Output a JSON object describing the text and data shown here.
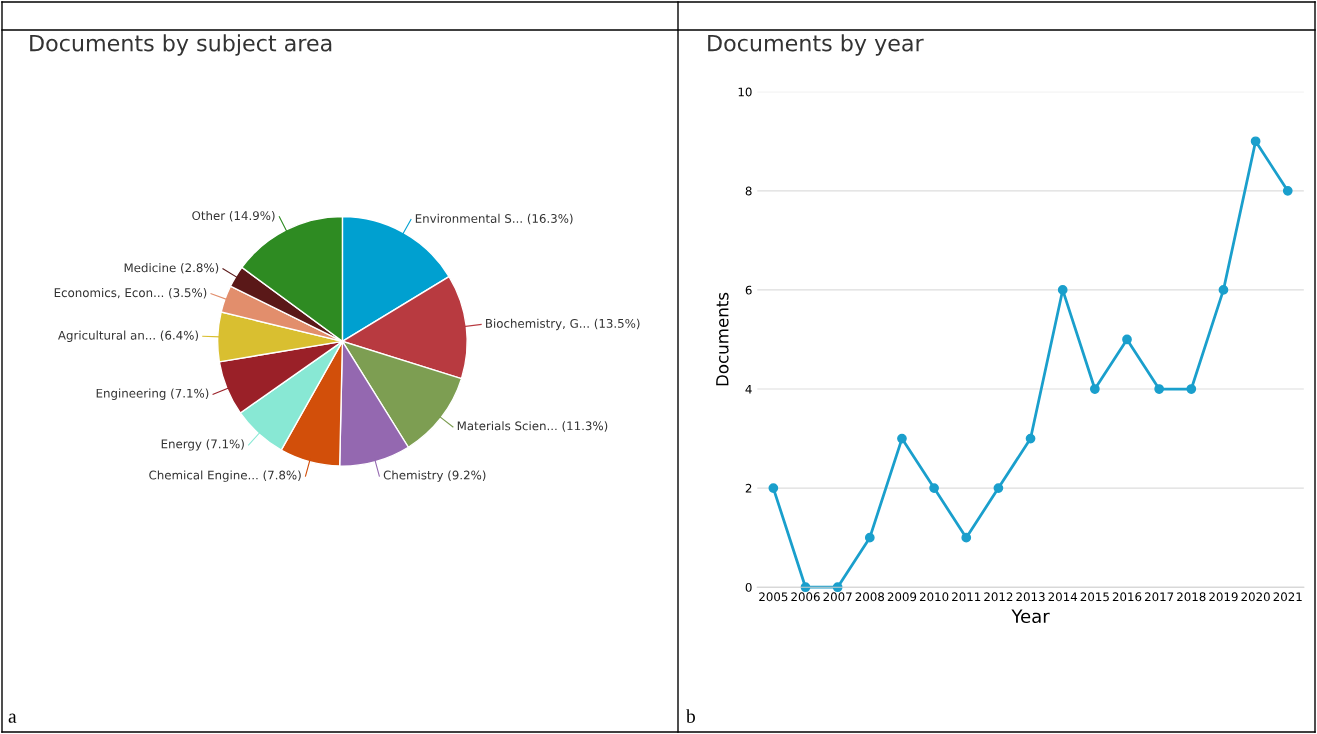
{
  "chart_data": [
    {
      "type": "pie",
      "title": "Documents by subject area",
      "categories": [
        "Environmental S...",
        "Biochemistry, G...",
        "Materials Scien...",
        "Chemistry",
        "Chemical Engine...",
        "Energy",
        "Engineering",
        "Agricultural an...",
        "Economics, Econ...",
        "Medicine",
        "Other"
      ],
      "values": [
        16.3,
        13.5,
        11.3,
        9.2,
        7.8,
        7.1,
        7.1,
        6.4,
        3.5,
        2.8,
        14.9
      ],
      "value_labels": [
        "(16.3%)",
        "(13.5%)",
        "(11.3%)",
        "(9.2%)",
        "(7.8%)",
        "(7.1%)",
        "(7.1%)",
        "(6.4%)",
        "(3.5%)",
        "(2.8%)",
        "(14.9%)"
      ],
      "colors": [
        "#00a0d0",
        "#b83a40",
        "#7d9e52",
        "#9468b0",
        "#d24f0a",
        "#88e8d4",
        "#9a2028",
        "#d9bf30",
        "#e28e6c",
        "#5a1818",
        "#2e8b22"
      ],
      "annotations": [
        "a"
      ]
    },
    {
      "type": "line",
      "title": "Documents by year",
      "xlabel": "Year",
      "ylabel": "Documents",
      "categories": [
        "2005",
        "2006",
        "2007",
        "2008",
        "2009",
        "2010",
        "2011",
        "2012",
        "2013",
        "2014",
        "2015",
        "2016",
        "2017",
        "2018",
        "2019",
        "2020",
        "2021"
      ],
      "series": [
        {
          "color": "#1a9fcc",
          "values": [
            2,
            0,
            0,
            1,
            3,
            2,
            1,
            2,
            3,
            6,
            4,
            5,
            4,
            4,
            6,
            9,
            8
          ]
        }
      ],
      "ylim": [
        0,
        10
      ],
      "yticks": [
        0,
        2,
        4,
        6,
        8,
        10
      ],
      "grid": "y",
      "marker": "circle",
      "line_style": "solid",
      "annotations": [
        "b"
      ]
    }
  ]
}
